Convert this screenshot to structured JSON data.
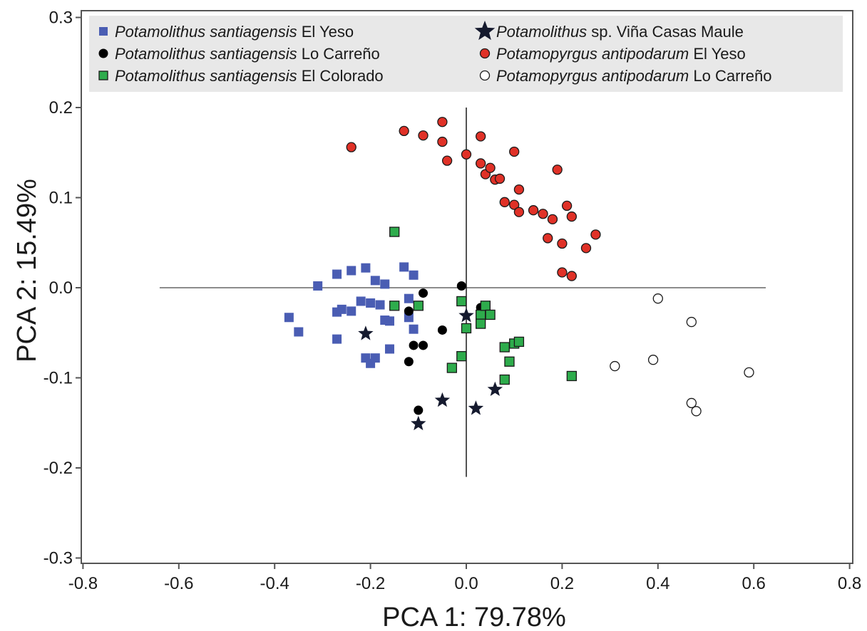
{
  "chart_data": {
    "type": "scatter",
    "xlabel": "PCA 1: 79.78%",
    "ylabel": "PCA 2: 15.49%",
    "xlim": [
      -0.8,
      0.8
    ],
    "ylim": [
      -0.3,
      0.3
    ],
    "x_ticks": [
      -0.8,
      -0.6,
      -0.4,
      -0.2,
      0.0,
      0.2,
      0.4,
      0.6,
      0.8
    ],
    "y_ticks": [
      -0.3,
      -0.2,
      -0.1,
      0.0,
      0.1,
      0.2,
      0.3
    ],
    "x_tick_labels": [
      "-0.8",
      "-0.6",
      "-0.4",
      "-0.2",
      "0.0",
      "0.2",
      "0.4",
      "0.6",
      "0.8"
    ],
    "y_tick_labels": [
      "-0.3",
      "-0.2",
      "-0.1",
      "0.0",
      "0.1",
      "0.2",
      "0.3"
    ],
    "grid": false,
    "legend_position": "top",
    "series": [
      {
        "name": "Potamolithus santiagensis El Yeso",
        "name_italic": "Potamolithus santiagensis",
        "name_rest": " El Yeso",
        "marker": "square",
        "color": "#4a5db3",
        "stroke": "none",
        "points": [
          [
            -0.37,
            -0.033
          ],
          [
            -0.35,
            -0.049
          ],
          [
            -0.31,
            0.002
          ],
          [
            -0.27,
            -0.027
          ],
          [
            -0.27,
            -0.057
          ],
          [
            -0.27,
            0.015
          ],
          [
            -0.26,
            -0.024
          ],
          [
            -0.24,
            0.019
          ],
          [
            -0.24,
            -0.026
          ],
          [
            -0.22,
            -0.015
          ],
          [
            -0.21,
            0.022
          ],
          [
            -0.21,
            -0.078
          ],
          [
            -0.2,
            -0.017
          ],
          [
            -0.2,
            -0.084
          ],
          [
            -0.19,
            0.008
          ],
          [
            -0.19,
            -0.078
          ],
          [
            -0.18,
            -0.019
          ],
          [
            -0.17,
            -0.036
          ],
          [
            -0.17,
            0.004
          ],
          [
            -0.16,
            -0.068
          ],
          [
            -0.16,
            -0.037
          ],
          [
            -0.13,
            0.023
          ],
          [
            -0.12,
            -0.012
          ],
          [
            -0.12,
            -0.033
          ],
          [
            -0.11,
            0.014
          ],
          [
            -0.11,
            -0.046
          ]
        ]
      },
      {
        "name": "Potamolithus santiagensis Lo Carreño",
        "name_italic": "Potamolithus santiagensis",
        "name_rest": " Lo Carreño",
        "marker": "circle",
        "color": "#000000",
        "stroke": "none",
        "points": [
          [
            -0.12,
            -0.026
          ],
          [
            -0.11,
            -0.064
          ],
          [
            -0.1,
            -0.136
          ],
          [
            -0.09,
            -0.064
          ],
          [
            -0.09,
            -0.006
          ],
          [
            -0.05,
            -0.047
          ],
          [
            -0.01,
            0.002
          ],
          [
            0.03,
            -0.022
          ],
          [
            -0.12,
            -0.082
          ]
        ]
      },
      {
        "name": "Potamolithus santiagensis El Colorado",
        "name_italic": "Potamolithus santiagensis",
        "name_rest": " El Colorado",
        "marker": "square",
        "color": "#2eac4c",
        "stroke": "#1a1a1a",
        "points": [
          [
            -0.15,
            0.062
          ],
          [
            -0.15,
            -0.02
          ],
          [
            -0.1,
            -0.02
          ],
          [
            -0.03,
            -0.089
          ],
          [
            -0.01,
            -0.076
          ],
          [
            -0.01,
            -0.015
          ],
          [
            0.0,
            -0.045
          ],
          [
            0.03,
            -0.03
          ],
          [
            0.03,
            -0.04
          ],
          [
            0.04,
            -0.02
          ],
          [
            0.05,
            -0.03
          ],
          [
            0.08,
            -0.066
          ],
          [
            0.08,
            -0.102
          ],
          [
            0.09,
            -0.082
          ],
          [
            0.1,
            -0.062
          ],
          [
            0.11,
            -0.06
          ],
          [
            0.22,
            -0.098
          ]
        ]
      },
      {
        "name": "Potamolithus sp. Viña Casas Maule",
        "name_italic": "Potamolithus",
        "name_rest": " sp. Viña Casas Maule",
        "marker": "star",
        "color": "#151a2e",
        "stroke": "none",
        "points": [
          [
            -0.21,
            -0.051
          ],
          [
            -0.1,
            -0.151
          ],
          [
            -0.05,
            -0.125
          ],
          [
            0.0,
            -0.031
          ],
          [
            0.02,
            -0.134
          ],
          [
            0.06,
            -0.113
          ]
        ]
      },
      {
        "name": "Potamopyrgus antipodarum El Yeso",
        "name_italic": "Potamopyrgus antipodarum",
        "name_rest": " El Yeso",
        "marker": "circle",
        "color": "#e03127",
        "stroke": "#1a1a1a",
        "points": [
          [
            -0.24,
            0.156
          ],
          [
            -0.13,
            0.174
          ],
          [
            -0.09,
            0.169
          ],
          [
            -0.05,
            0.162
          ],
          [
            -0.05,
            0.184
          ],
          [
            -0.04,
            0.141
          ],
          [
            0.0,
            0.148
          ],
          [
            0.03,
            0.168
          ],
          [
            0.03,
            0.138
          ],
          [
            0.04,
            0.126
          ],
          [
            0.05,
            0.133
          ],
          [
            0.06,
            0.12
          ],
          [
            0.07,
            0.121
          ],
          [
            0.08,
            0.095
          ],
          [
            0.1,
            0.151
          ],
          [
            0.1,
            0.092
          ],
          [
            0.11,
            0.109
          ],
          [
            0.11,
            0.084
          ],
          [
            0.14,
            0.086
          ],
          [
            0.16,
            0.082
          ],
          [
            0.17,
            0.055
          ],
          [
            0.18,
            0.076
          ],
          [
            0.19,
            0.131
          ],
          [
            0.2,
            0.017
          ],
          [
            0.2,
            0.049
          ],
          [
            0.21,
            0.091
          ],
          [
            0.22,
            0.079
          ],
          [
            0.22,
            0.013
          ],
          [
            0.25,
            0.044
          ],
          [
            0.27,
            0.059
          ]
        ]
      },
      {
        "name": "Potamopyrgus antipodarum Lo Carreño",
        "name_italic": "Potamopyrgus antipodarum",
        "name_rest": " Lo Carreño",
        "marker": "circle",
        "color": "#ffffff",
        "stroke": "#1a1a1a",
        "points": [
          [
            0.31,
            -0.087
          ],
          [
            0.39,
            -0.08
          ],
          [
            0.4,
            -0.012
          ],
          [
            0.47,
            -0.038
          ],
          [
            0.47,
            -0.128
          ],
          [
            0.48,
            -0.137
          ],
          [
            0.59,
            -0.094
          ]
        ]
      }
    ]
  }
}
